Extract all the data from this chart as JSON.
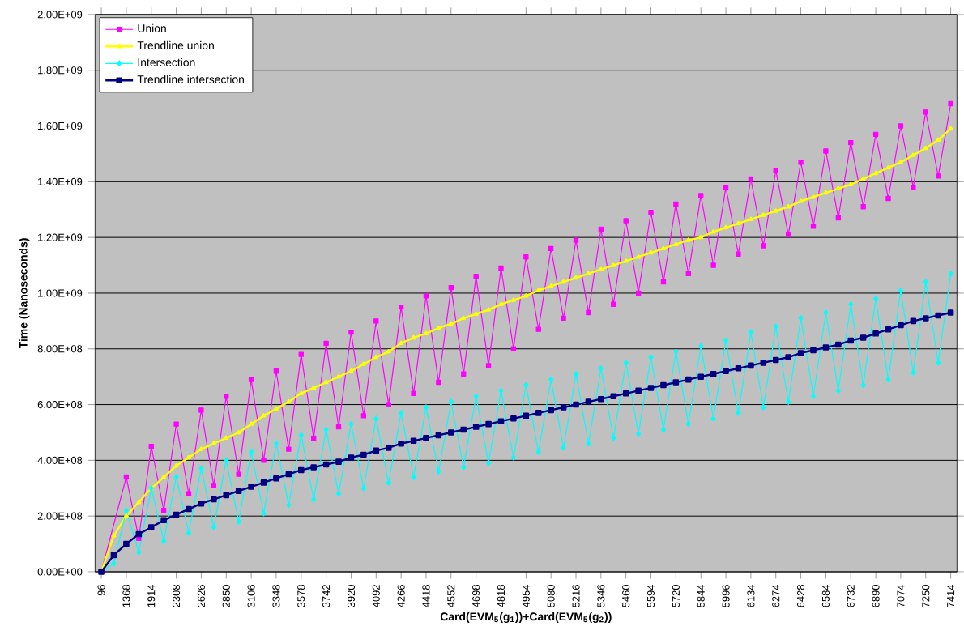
{
  "chart_data": {
    "type": "line",
    "xlabel": "Card(EVM$_{5}$(g$_{1}$))+Card(EVM$_{5}$(g$_{2}$))",
    "ylabel": "Time (Nanoseconds)",
    "categories": [
      "96",
      null,
      "1368",
      null,
      "1914",
      null,
      "2308",
      null,
      "2626",
      null,
      "2850",
      null,
      "3106",
      null,
      "3348",
      null,
      "3578",
      null,
      "3742",
      null,
      "3920",
      null,
      "4092",
      null,
      "4266",
      null,
      "4418",
      null,
      "4552",
      null,
      "4698",
      null,
      "4818",
      null,
      "4954",
      null,
      "5080",
      null,
      "5216",
      null,
      "5346",
      null,
      "5460",
      null,
      "5594",
      null,
      "5720",
      null,
      "5844",
      null,
      "5996",
      null,
      "6134",
      null,
      "6274",
      null,
      "6428",
      null,
      "6584",
      null,
      "6732",
      null,
      "6890",
      null,
      "7074",
      null,
      "7250",
      null,
      "7414"
    ],
    "ylim": [
      0,
      2000000000.0
    ],
    "yticks": [
      {
        "value": 0,
        "label": "0.00E+00"
      },
      {
        "value": 200000000.0,
        "label": "2.00E+08"
      },
      {
        "value": 400000000.0,
        "label": "4.00E+08"
      },
      {
        "value": 600000000.0,
        "label": "6.00E+08"
      },
      {
        "value": 800000000.0,
        "label": "8.00E+08"
      },
      {
        "value": 1000000000.0,
        "label": "1.00E+09"
      },
      {
        "value": 1200000000.0,
        "label": "1.20E+09"
      },
      {
        "value": 1400000000.0,
        "label": "1.40E+09"
      },
      {
        "value": 1600000000.0,
        "label": "1.60E+09"
      },
      {
        "value": 1800000000.0,
        "label": "1.80E+09"
      },
      {
        "value": 2000000000.0,
        "label": "2.00E+09"
      }
    ],
    "grid": "y",
    "legend": "top left",
    "series": [
      {
        "name": "Union",
        "color": "#ff00ff",
        "marker": "square",
        "values": [
          0,
          null,
          340000000.0,
          120000000.0,
          450000000.0,
          220000000.0,
          530000000.0,
          280000000.0,
          580000000.0,
          310000000.0,
          630000000.0,
          350000000.0,
          690000000.0,
          400000000.0,
          720000000.0,
          440000000.0,
          780000000.0,
          480000000.0,
          820000000.0,
          520000000.0,
          860000000.0,
          560000000.0,
          900000000.0,
          600000000.0,
          950000000.0,
          640000000.0,
          990000000.0,
          680000000.0,
          1020000000.0,
          710000000.0,
          1060000000.0,
          740000000.0,
          1090000000.0,
          800000000.0,
          1130000000.0,
          870000000.0,
          1160000000.0,
          910000000.0,
          1190000000.0,
          930000000.0,
          1230000000.0,
          960000000.0,
          1260000000.0,
          1000000000.0,
          1290000000.0,
          1040000000.0,
          1320000000.0,
          1070000000.0,
          1350000000.0,
          1100000000.0,
          1380000000.0,
          1140000000.0,
          1410000000.0,
          1170000000.0,
          1440000000.0,
          1210000000.0,
          1470000000.0,
          1240000000.0,
          1510000000.0,
          1270000000.0,
          1540000000.0,
          1310000000.0,
          1570000000.0,
          1340000000.0,
          1600000000.0,
          1380000000.0,
          1650000000.0,
          1420000000.0,
          1680000000.0
        ]
      },
      {
        "name": "Trendline union",
        "color": "#ffff00",
        "marker": "triangle",
        "values": [
          0,
          130000000.0,
          200000000.0,
          250000000.0,
          300000000.0,
          340000000.0,
          380000000.0,
          410000000.0,
          440000000.0,
          460000000.0,
          480000000.0,
          500000000.0,
          530000000.0,
          560000000.0,
          585000000.0,
          610000000.0,
          640000000.0,
          660000000.0,
          680000000.0,
          700000000.0,
          720000000.0,
          745000000.0,
          770000000.0,
          790000000.0,
          820000000.0,
          840000000.0,
          855000000.0,
          875000000.0,
          890000000.0,
          910000000.0,
          925000000.0,
          940000000.0,
          960000000.0,
          975000000.0,
          990000000.0,
          1010000000.0,
          1025000000.0,
          1040000000.0,
          1055000000.0,
          1070000000.0,
          1085000000.0,
          1100000000.0,
          1115000000.0,
          1130000000.0,
          1145000000.0,
          1160000000.0,
          1175000000.0,
          1190000000.0,
          1200000000.0,
          1220000000.0,
          1235000000.0,
          1250000000.0,
          1265000000.0,
          1280000000.0,
          1295000000.0,
          1310000000.0,
          1330000000.0,
          1345000000.0,
          1360000000.0,
          1375000000.0,
          1390000000.0,
          1410000000.0,
          1430000000.0,
          1450000000.0,
          1470000000.0,
          1495000000.0,
          1520000000.0,
          1550000000.0,
          1590000000.0
        ]
      },
      {
        "name": "Intersection",
        "color": "#00ffff",
        "marker": "diamond",
        "values": [
          0,
          30000000.0,
          220000000.0,
          70000000.0,
          300000000.0,
          110000000.0,
          340000000.0,
          140000000.0,
          370000000.0,
          160000000.0,
          400000000.0,
          180000000.0,
          430000000.0,
          210000000.0,
          460000000.0,
          240000000.0,
          490000000.0,
          260000000.0,
          510000000.0,
          280000000.0,
          530000000.0,
          300000000.0,
          550000000.0,
          320000000.0,
          570000000.0,
          340000000.0,
          590000000.0,
          360000000.0,
          610000000.0,
          375000000.0,
          630000000.0,
          390000000.0,
          650000000.0,
          410000000.0,
          670000000.0,
          430000000.0,
          690000000.0,
          445000000.0,
          710000000.0,
          460000000.0,
          730000000.0,
          480000000.0,
          750000000.0,
          495000000.0,
          770000000.0,
          510000000.0,
          790000000.0,
          530000000.0,
          810000000.0,
          550000000.0,
          830000000.0,
          570000000.0,
          860000000.0,
          590000000.0,
          880000000.0,
          610000000.0,
          910000000.0,
          630000000.0,
          930000000.0,
          650000000.0,
          960000000.0,
          670000000.0,
          980000000.0,
          690000000.0,
          1010000000.0,
          715000000.0,
          1040000000.0,
          750000000.0,
          1070000000.0
        ]
      },
      {
        "name": "Trendline intersection",
        "color": "#000080",
        "marker": "square",
        "values": [
          0,
          60000000.0,
          100000000.0,
          135000000.0,
          160000000.0,
          185000000.0,
          205000000.0,
          225000000.0,
          245000000.0,
          260000000.0,
          275000000.0,
          290000000.0,
          305000000.0,
          320000000.0,
          335000000.0,
          350000000.0,
          365000000.0,
          375000000.0,
          385000000.0,
          395000000.0,
          410000000.0,
          420000000.0,
          435000000.0,
          445000000.0,
          460000000.0,
          470000000.0,
          480000000.0,
          490000000.0,
          500000000.0,
          510000000.0,
          520000000.0,
          530000000.0,
          540000000.0,
          550000000.0,
          560000000.0,
          570000000.0,
          580000000.0,
          590000000.0,
          600000000.0,
          610000000.0,
          620000000.0,
          630000000.0,
          640000000.0,
          650000000.0,
          660000000.0,
          670000000.0,
          680000000.0,
          690000000.0,
          700000000.0,
          710000000.0,
          720000000.0,
          730000000.0,
          740000000.0,
          750000000.0,
          760000000.0,
          770000000.0,
          785000000.0,
          795000000.0,
          805000000.0,
          815000000.0,
          830000000.0,
          840000000.0,
          855000000.0,
          870000000.0,
          885000000.0,
          900000000.0,
          910000000.0,
          920000000.0,
          930000000.0
        ]
      }
    ]
  }
}
